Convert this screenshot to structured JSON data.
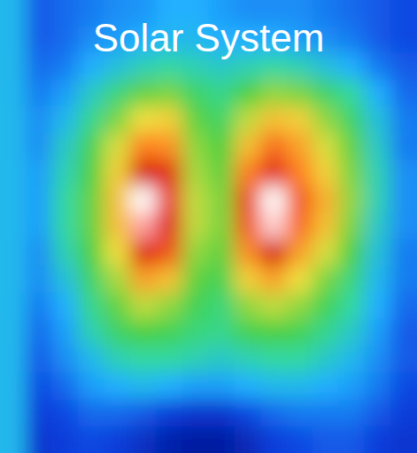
{
  "chart_data": {
    "type": "heatmap",
    "title": "Solar System",
    "cells": [
      [
        30,
        18,
        20,
        22,
        24,
        25,
        28,
        28,
        26,
        24,
        24,
        24,
        22,
        20,
        18,
        16
      ],
      [
        30,
        18,
        20,
        24,
        26,
        28,
        30,
        30,
        28,
        28,
        28,
        26,
        24,
        22,
        18,
        16
      ],
      [
        30,
        20,
        22,
        28,
        32,
        36,
        38,
        36,
        34,
        36,
        38,
        36,
        32,
        28,
        22,
        18
      ],
      [
        30,
        22,
        26,
        34,
        42,
        50,
        52,
        44,
        40,
        48,
        54,
        52,
        44,
        38,
        28,
        20
      ],
      [
        30,
        24,
        30,
        40,
        52,
        62,
        64,
        50,
        44,
        58,
        66,
        64,
        54,
        44,
        32,
        22
      ],
      [
        30,
        24,
        34,
        46,
        60,
        74,
        72,
        54,
        48,
        66,
        76,
        70,
        60,
        50,
        34,
        22
      ],
      [
        30,
        26,
        36,
        48,
        64,
        86,
        82,
        56,
        50,
        74,
        88,
        74,
        64,
        52,
        36,
        24
      ],
      [
        30,
        26,
        38,
        50,
        66,
        100,
        90,
        58,
        52,
        80,
        100,
        78,
        68,
        54,
        36,
        24
      ],
      [
        30,
        26,
        38,
        50,
        66,
        96,
        88,
        58,
        52,
        78,
        98,
        76,
        66,
        52,
        34,
        24
      ],
      [
        30,
        24,
        36,
        48,
        62,
        84,
        78,
        54,
        50,
        72,
        86,
        70,
        60,
        48,
        32,
        22
      ],
      [
        30,
        24,
        32,
        44,
        56,
        70,
        66,
        50,
        46,
        64,
        70,
        62,
        52,
        42,
        30,
        22
      ],
      [
        30,
        22,
        28,
        40,
        50,
        58,
        54,
        46,
        42,
        54,
        58,
        54,
        46,
        38,
        28,
        20
      ],
      [
        30,
        20,
        26,
        36,
        44,
        48,
        46,
        42,
        40,
        46,
        48,
        46,
        40,
        34,
        26,
        18
      ],
      [
        30,
        18,
        24,
        30,
        36,
        38,
        38,
        36,
        34,
        36,
        38,
        38,
        34,
        30,
        24,
        18
      ],
      [
        30,
        16,
        20,
        26,
        28,
        30,
        28,
        26,
        26,
        28,
        30,
        30,
        28,
        26,
        22,
        16
      ],
      [
        30,
        14,
        16,
        20,
        20,
        18,
        14,
        12,
        12,
        16,
        20,
        22,
        22,
        22,
        18,
        14
      ],
      [
        30,
        12,
        14,
        16,
        14,
        10,
        6,
        4,
        4,
        8,
        14,
        16,
        18,
        18,
        14,
        12
      ]
    ],
    "zlim": [
      0,
      100
    ],
    "tick_labels": false
  }
}
